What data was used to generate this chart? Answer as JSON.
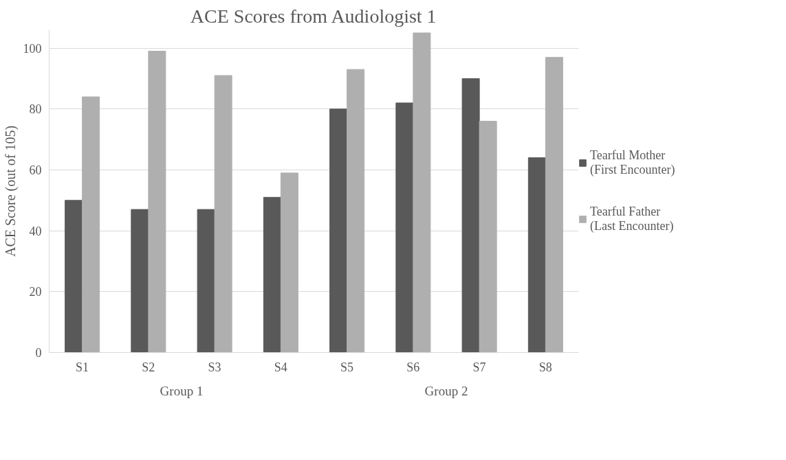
{
  "chart_data": {
    "type": "bar",
    "title": "ACE Scores from Audiologist 1",
    "ylabel": "ACE Score (out of 105)",
    "categories": [
      "S1",
      "S2",
      "S3",
      "S4",
      "S5",
      "S6",
      "S7",
      "S8"
    ],
    "series": [
      {
        "name": "Tearful Mother\n(First Encounter)",
        "color": "#595959",
        "values": [
          50,
          47,
          47,
          51,
          80,
          82,
          90,
          64
        ]
      },
      {
        "name": "Tearful Father\n(Last Encounter)",
        "color": "#afafaf",
        "values": [
          84,
          99,
          91,
          59,
          93,
          105,
          76,
          97
        ]
      }
    ],
    "ylim": [
      0,
      106
    ],
    "yticks": [
      0,
      20,
      40,
      60,
      80,
      100
    ],
    "grid": "y",
    "legend": "right",
    "annotations": [
      "Group 1",
      "Group 2"
    ]
  }
}
